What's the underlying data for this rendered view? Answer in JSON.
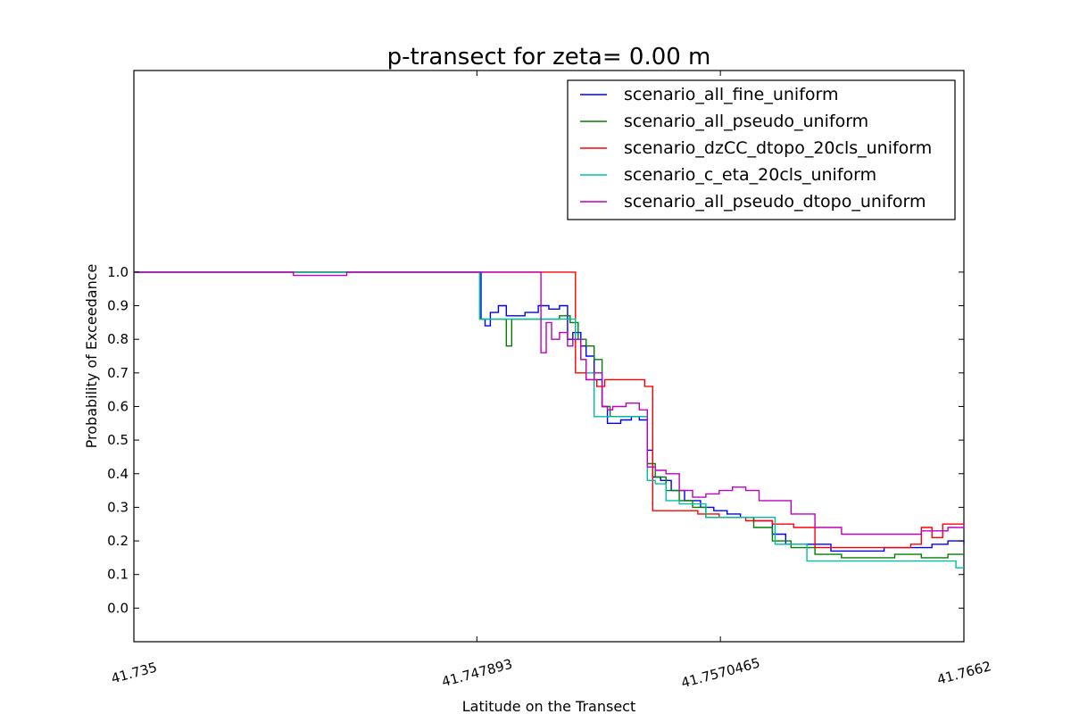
{
  "chart_data": {
    "type": "line",
    "title": "p-transect for zeta= 0.00 m",
    "xlabel": "Latitude on the Transect",
    "ylabel": "Probability of Exceedance",
    "xlim": [
      41.735,
      41.7662
    ],
    "ylim": [
      -0.1,
      1.6
    ],
    "xticks": [
      41.735,
      41.747893,
      41.7570465,
      41.7662
    ],
    "xtick_labels": [
      "41.735",
      "41.747893",
      "41.7570465",
      "41.7662"
    ],
    "yticks": [
      0.0,
      0.1,
      0.2,
      0.3,
      0.4,
      0.5,
      0.6,
      0.7,
      0.8,
      0.9,
      1.0
    ],
    "ytick_labels": [
      "0.0",
      "0.1",
      "0.2",
      "0.3",
      "0.4",
      "0.5",
      "0.6",
      "0.7",
      "0.8",
      "0.9",
      "1.0"
    ],
    "grid": false,
    "legend_position": "top-right",
    "series": [
      {
        "name": "scenario_all_fine_uniform",
        "color": "#0000ff",
        "x": [
          41.735,
          41.747893,
          41.74805,
          41.7482,
          41.7484,
          41.7487,
          41.749,
          41.7493,
          41.7497,
          41.7502,
          41.7506,
          41.751,
          41.7513,
          41.7515,
          41.7518,
          41.752,
          41.7523,
          41.7526,
          41.7528,
          41.753,
          41.7533,
          41.7537,
          41.754,
          41.7543,
          41.7545,
          41.7548,
          41.7552,
          41.7557,
          41.7563,
          41.7568,
          41.7573,
          41.7578,
          41.7583,
          41.759,
          41.7595,
          41.7603,
          41.7612,
          41.7622,
          41.7632,
          41.7643,
          41.765,
          41.7656,
          41.7662
        ],
        "y": [
          1.0,
          1.0,
          0.86,
          0.84,
          0.88,
          0.9,
          0.87,
          0.87,
          0.88,
          0.9,
          0.89,
          0.9,
          0.8,
          0.82,
          0.78,
          0.75,
          0.68,
          0.6,
          0.55,
          0.55,
          0.56,
          0.57,
          0.56,
          0.47,
          0.39,
          0.38,
          0.35,
          0.32,
          0.3,
          0.29,
          0.28,
          0.27,
          0.26,
          0.22,
          0.19,
          0.19,
          0.17,
          0.17,
          0.18,
          0.18,
          0.19,
          0.2,
          0.19
        ]
      },
      {
        "name": "scenario_all_pseudo_uniform",
        "color": "#008000",
        "x": [
          41.735,
          41.747893,
          41.748,
          41.7483,
          41.7487,
          41.749,
          41.7492,
          41.7494,
          41.7497,
          41.7505,
          41.751,
          41.7514,
          41.7517,
          41.752,
          41.7523,
          41.7526,
          41.7529,
          41.7535,
          41.754,
          41.7543,
          41.7546,
          41.755,
          41.7555,
          41.756,
          41.7565,
          41.757,
          41.7578,
          41.7583,
          41.759,
          41.7597,
          41.7606,
          41.7616,
          41.7626,
          41.7636,
          41.7646,
          41.7656,
          41.7662
        ],
        "y": [
          1.0,
          1.0,
          0.86,
          0.86,
          0.86,
          0.78,
          0.86,
          0.86,
          0.86,
          0.86,
          0.87,
          0.85,
          0.8,
          0.78,
          0.74,
          0.6,
          0.57,
          0.57,
          0.57,
          0.43,
          0.39,
          0.35,
          0.32,
          0.3,
          0.27,
          0.27,
          0.27,
          0.24,
          0.2,
          0.18,
          0.16,
          0.15,
          0.15,
          0.16,
          0.15,
          0.16,
          0.16
        ]
      },
      {
        "name": "scenario_dzCC_dtopo_20cls_uniform",
        "color": "#ff0000",
        "x": [
          41.735,
          41.747893,
          41.7515,
          41.7516,
          41.752,
          41.7524,
          41.7527,
          41.753,
          41.7536,
          41.7542,
          41.7545,
          41.7548,
          41.7555,
          41.7562,
          41.757,
          41.758,
          41.759,
          41.7598,
          41.7606,
          41.7616,
          41.7626,
          41.7636,
          41.7642,
          41.7646,
          41.765,
          41.7654,
          41.7662
        ],
        "y": [
          1.0,
          1.0,
          1.0,
          0.7,
          0.68,
          0.66,
          0.68,
          0.68,
          0.68,
          0.66,
          0.29,
          0.29,
          0.29,
          0.28,
          0.27,
          0.26,
          0.25,
          0.24,
          0.18,
          0.18,
          0.18,
          0.18,
          0.19,
          0.24,
          0.21,
          0.25,
          0.25
        ]
      },
      {
        "name": "scenario_c_eta_20cls_uniform",
        "color": "#00bfa0",
        "x": [
          41.735,
          41.747893,
          41.748,
          41.7485,
          41.749,
          41.7495,
          41.75,
          41.7505,
          41.751,
          41.7513,
          41.7516,
          41.7518,
          41.752,
          41.7523,
          41.7526,
          41.753,
          41.754,
          41.7543,
          41.7546,
          41.755,
          41.7555,
          41.756,
          41.7565,
          41.757,
          41.7578,
          41.7585,
          41.7591,
          41.7595,
          41.7603,
          41.7612,
          41.7622,
          41.7632,
          41.7642,
          41.765,
          41.7656,
          41.7659,
          41.7662
        ],
        "y": [
          1.0,
          1.0,
          0.86,
          0.86,
          0.86,
          0.86,
          0.86,
          0.86,
          0.86,
          0.86,
          0.8,
          0.74,
          0.7,
          0.57,
          0.57,
          0.57,
          0.57,
          0.38,
          0.37,
          0.32,
          0.31,
          0.31,
          0.27,
          0.27,
          0.27,
          0.27,
          0.19,
          0.19,
          0.14,
          0.14,
          0.14,
          0.14,
          0.14,
          0.14,
          0.14,
          0.12,
          0.12
        ]
      },
      {
        "name": "scenario_all_pseudo_dtopo_uniform",
        "color": "#bf00bf",
        "x": [
          41.735,
          41.7395,
          41.741,
          41.7425,
          41.743,
          41.7435,
          41.747893,
          41.7501,
          41.7503,
          41.7505,
          41.7507,
          41.751,
          41.7513,
          41.7515,
          41.7518,
          41.752,
          41.7523,
          41.7526,
          41.7528,
          41.753,
          41.7535,
          41.754,
          41.7543,
          41.7546,
          41.755,
          41.7555,
          41.756,
          41.7565,
          41.757,
          41.7575,
          41.758,
          41.7585,
          41.759,
          41.7597,
          41.7606,
          41.7616,
          41.7626,
          41.7636,
          41.7646,
          41.7656,
          41.7662
        ],
        "y": [
          1.0,
          1.0,
          0.99,
          0.99,
          1.0,
          1.0,
          1.0,
          1.0,
          0.76,
          0.85,
          0.8,
          0.82,
          0.78,
          0.8,
          0.74,
          0.68,
          0.7,
          0.6,
          0.59,
          0.6,
          0.61,
          0.59,
          0.42,
          0.41,
          0.4,
          0.35,
          0.33,
          0.34,
          0.35,
          0.36,
          0.35,
          0.32,
          0.32,
          0.28,
          0.24,
          0.22,
          0.22,
          0.22,
          0.23,
          0.24,
          0.25
        ]
      }
    ]
  }
}
